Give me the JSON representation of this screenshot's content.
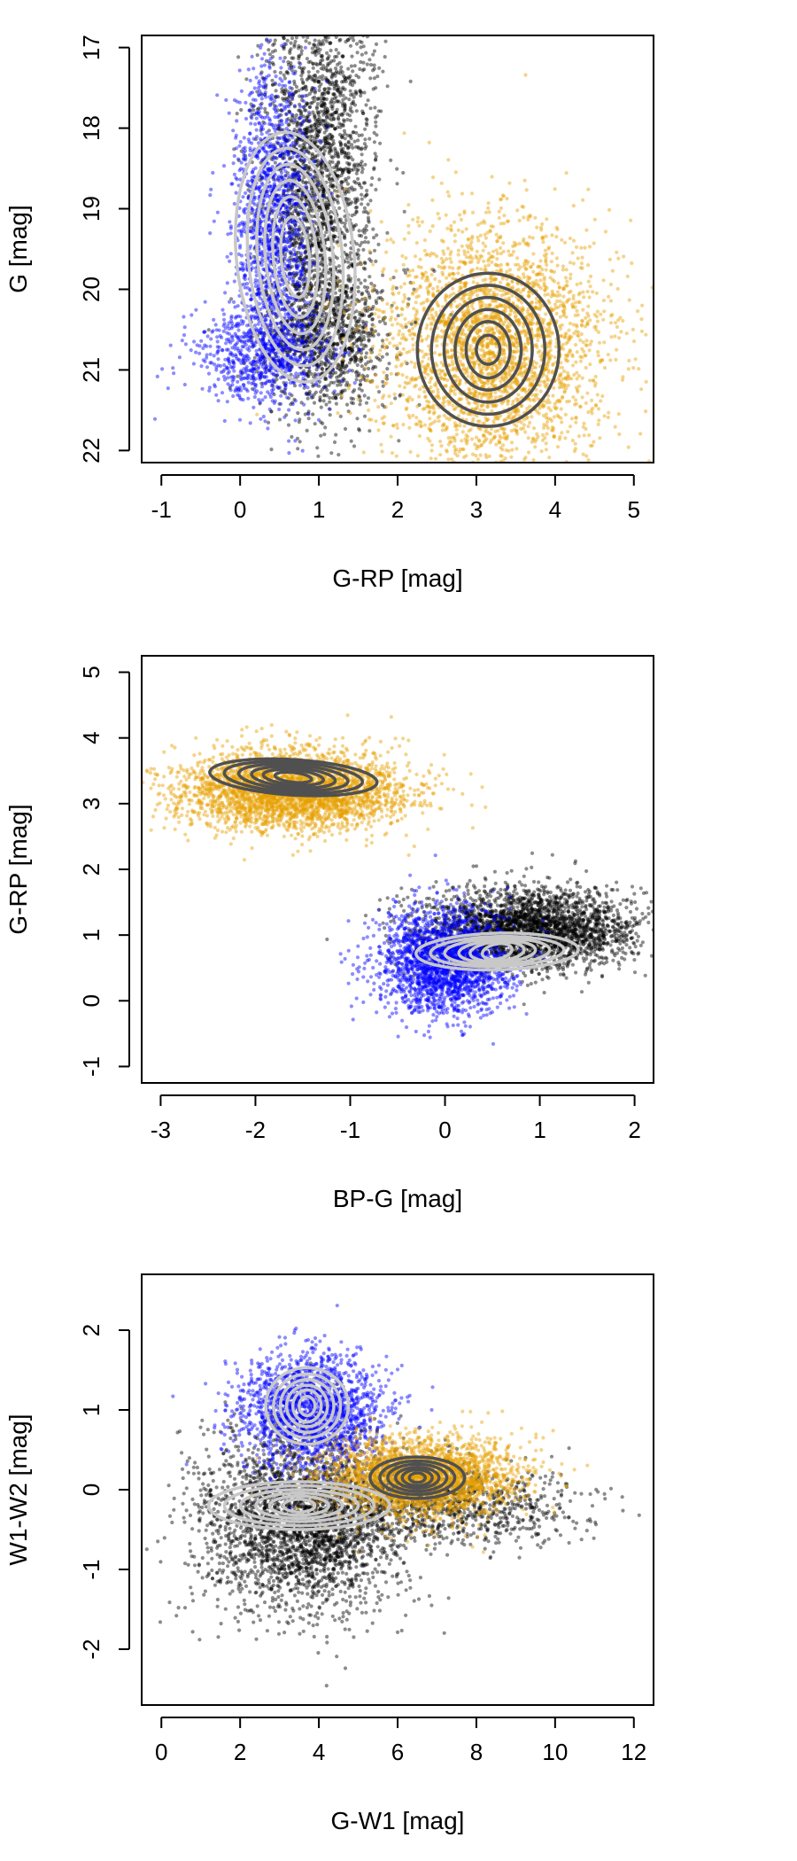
{
  "chart_data": [
    {
      "type": "scatter",
      "xlabel": "G-RP [mag]",
      "ylabel": "G [mag]",
      "xlim": [
        -1.25,
        5.25
      ],
      "ylim": [
        22.15,
        16.85
      ],
      "y_inverted": true,
      "xticks": [
        -1,
        0,
        1,
        2,
        3,
        4,
        5
      ],
      "xtick_labels": [
        "-1",
        "0",
        "1",
        "2",
        "3",
        "4",
        "5"
      ],
      "yticks": [
        17,
        18,
        19,
        20,
        21,
        22
      ],
      "ytick_labels": [
        "17",
        "18",
        "19",
        "20",
        "21",
        "22"
      ],
      "grid": false,
      "series": [
        {
          "color": "#000000",
          "cloud": [
            {
              "cx": 1.0,
              "cy": 18.6,
              "sx": 0.35,
              "sy": 1.3,
              "n": 2500
            },
            {
              "cx": 1.1,
              "cy": 20.6,
              "sx": 0.4,
              "sy": 0.45,
              "n": 900
            }
          ]
        },
        {
          "color": "#0000ff",
          "cloud": [
            {
              "cx": 0.4,
              "cy": 19.2,
              "sx": 0.25,
              "sy": 1.0,
              "n": 1500
            },
            {
              "cx": 0.3,
              "cy": 20.8,
              "sx": 0.45,
              "sy": 0.3,
              "n": 700
            }
          ]
        },
        {
          "color": "#e69f00",
          "cloud": [
            {
              "cx": 3.2,
              "cy": 20.7,
              "sx": 0.7,
              "sy": 0.75,
              "n": 3000
            }
          ]
        }
      ],
      "contours": [
        {
          "color": "#c8c8c8",
          "cx": 0.7,
          "cy": 19.6,
          "rx": [
            0.75,
            0.6,
            0.48,
            0.38,
            0.28,
            0.18
          ],
          "ry": [
            1.55,
            1.35,
            1.15,
            0.95,
            0.75,
            0.5
          ],
          "skew": 0.08
        },
        {
          "color": "#505050",
          "cx": 3.15,
          "cy": 20.75,
          "rx": [
            0.9,
            0.72,
            0.56,
            0.42,
            0.28,
            0.15
          ],
          "ry": [
            0.95,
            0.8,
            0.65,
            0.5,
            0.35,
            0.18
          ],
          "skew": 0.0
        }
      ]
    },
    {
      "type": "scatter",
      "xlabel": "BP-G [mag]",
      "ylabel": "G-RP [mag]",
      "xlim": [
        -3.2,
        2.2
      ],
      "ylim": [
        -1.25,
        5.25
      ],
      "y_inverted": false,
      "xticks": [
        -3,
        -2,
        -1,
        0,
        1,
        2
      ],
      "xtick_labels": [
        "-3",
        "-2",
        "-1",
        "0",
        "1",
        "2"
      ],
      "yticks": [
        -1,
        0,
        1,
        2,
        3,
        4,
        5
      ],
      "ytick_labels": [
        "-1",
        "0",
        "1",
        "2",
        "3",
        "4",
        "5"
      ],
      "grid": false,
      "series": [
        {
          "color": "#000000",
          "cloud": [
            {
              "cx": 0.9,
              "cy": 1.1,
              "sx": 0.55,
              "sy": 0.3,
              "n": 2800
            }
          ]
        },
        {
          "color": "#0000ff",
          "cloud": [
            {
              "cx": 0.0,
              "cy": 0.6,
              "sx": 0.35,
              "sy": 0.4,
              "n": 2200
            }
          ]
        },
        {
          "color": "#e69f00",
          "cloud": [
            {
              "cx": -1.6,
              "cy": 3.2,
              "sx": 0.6,
              "sy": 0.3,
              "n": 3200
            }
          ]
        }
      ],
      "contours": [
        {
          "color": "#c8c8c8",
          "cx": 0.55,
          "cy": 0.75,
          "rx": [
            0.85,
            0.7,
            0.55,
            0.4,
            0.28,
            0.15
          ],
          "ry": [
            0.28,
            0.23,
            0.2,
            0.17,
            0.15,
            0.12
          ],
          "skew": 0.35
        },
        {
          "color": "#505050",
          "cx": -1.6,
          "cy": 3.4,
          "rx": [
            0.85,
            0.7,
            0.55,
            0.42,
            0.3,
            0.18
          ],
          "ry": [
            0.28,
            0.24,
            0.2,
            0.16,
            0.12,
            0.08
          ],
          "skew": -0.85
        }
      ]
    },
    {
      "type": "scatter",
      "xlabel": "G-W1 [mag]",
      "ylabel": "W1-W2 [mag]",
      "xlim": [
        -0.5,
        12.5
      ],
      "ylim": [
        -2.7,
        2.7
      ],
      "y_inverted": false,
      "xticks": [
        0,
        2,
        4,
        6,
        8,
        10,
        12
      ],
      "xtick_labels": [
        "0",
        "2",
        "4",
        "6",
        "8",
        "10",
        "12"
      ],
      "yticks": [
        -2,
        -1,
        0,
        1,
        2
      ],
      "ytick_labels": [
        "-2",
        "-1",
        "0",
        "1",
        "2"
      ],
      "grid": false,
      "series": [
        {
          "color": "#000000",
          "cloud": [
            {
              "cx": 3.6,
              "cy": -0.4,
              "sx": 1.3,
              "sy": 0.55,
              "n": 3000
            },
            {
              "cx": 7.5,
              "cy": -0.2,
              "sx": 1.6,
              "sy": 0.25,
              "n": 900
            }
          ]
        },
        {
          "color": "#0000ff",
          "cloud": [
            {
              "cx": 3.8,
              "cy": 1.0,
              "sx": 0.9,
              "sy": 0.35,
              "n": 1800
            }
          ]
        },
        {
          "color": "#e69f00",
          "cloud": [
            {
              "cx": 6.6,
              "cy": 0.15,
              "sx": 1.2,
              "sy": 0.25,
              "n": 2600
            }
          ]
        }
      ],
      "contours": [
        {
          "color": "#c8c8c8",
          "cx": 3.7,
          "cy": 1.05,
          "rx": [
            1.05,
            0.85,
            0.68,
            0.52,
            0.36,
            0.2
          ],
          "ry": [
            0.48,
            0.4,
            0.33,
            0.26,
            0.2,
            0.12
          ],
          "skew": 0.0
        },
        {
          "color": "#c8c8c8",
          "cx": 3.5,
          "cy": -0.2,
          "rx": [
            2.3,
            1.9,
            1.5,
            1.1,
            0.75,
            0.4
          ],
          "ry": [
            0.3,
            0.25,
            0.2,
            0.16,
            0.12,
            0.08
          ],
          "skew": 0.0
        },
        {
          "color": "#505050",
          "cx": 6.5,
          "cy": 0.15,
          "rx": [
            1.2,
            0.95,
            0.75,
            0.55,
            0.38,
            0.2
          ],
          "ry": [
            0.26,
            0.21,
            0.17,
            0.13,
            0.1,
            0.06
          ],
          "skew": 0.0
        }
      ]
    }
  ]
}
